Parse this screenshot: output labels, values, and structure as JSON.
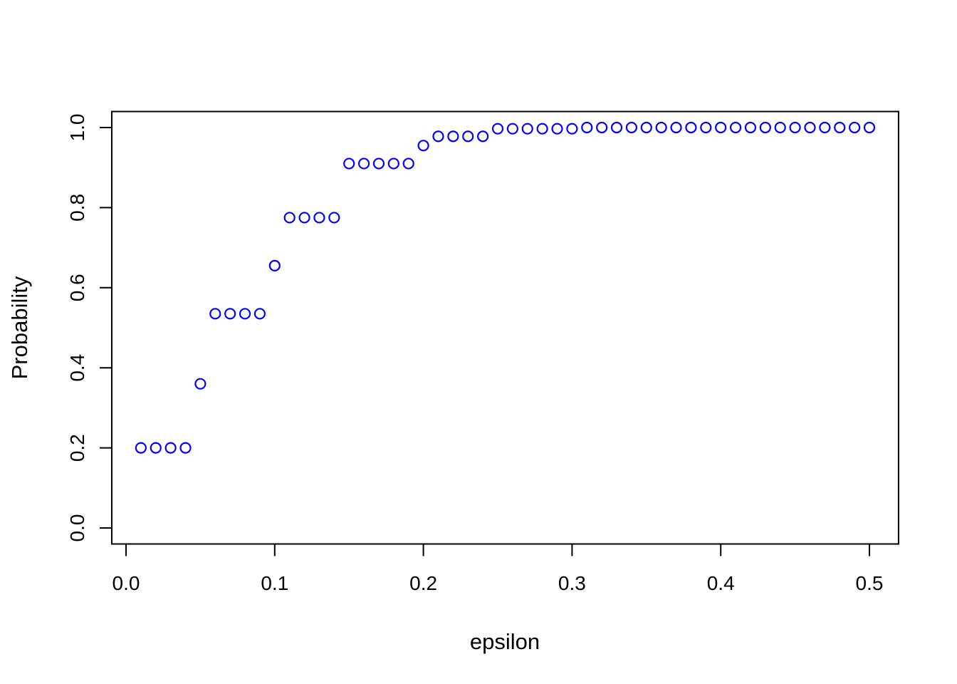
{
  "chart_data": {
    "type": "scatter",
    "title": "",
    "xlabel": "epsilon",
    "ylabel": "Probability",
    "x": [
      0.01,
      0.02,
      0.03,
      0.04,
      0.05,
      0.06,
      0.07,
      0.08,
      0.09,
      0.1,
      0.11,
      0.12,
      0.13,
      0.14,
      0.15,
      0.16,
      0.17,
      0.18,
      0.19,
      0.2,
      0.21,
      0.22,
      0.23,
      0.24,
      0.25,
      0.26,
      0.27,
      0.28,
      0.29,
      0.3,
      0.31,
      0.32,
      0.33,
      0.34,
      0.35,
      0.36,
      0.37,
      0.38,
      0.39,
      0.4,
      0.41,
      0.42,
      0.43,
      0.44,
      0.45,
      0.46,
      0.47,
      0.48,
      0.49,
      0.5
    ],
    "y": [
      0.2,
      0.2,
      0.2,
      0.2,
      0.36,
      0.535,
      0.535,
      0.535,
      0.535,
      0.655,
      0.775,
      0.775,
      0.775,
      0.775,
      0.91,
      0.91,
      0.91,
      0.91,
      0.91,
      0.955,
      0.978,
      0.978,
      0.978,
      0.978,
      0.997,
      0.997,
      0.997,
      0.997,
      0.997,
      0.997,
      1.0,
      1.0,
      1.0,
      1.0,
      1.0,
      1.0,
      1.0,
      1.0,
      1.0,
      1.0,
      1.0,
      1.0,
      1.0,
      1.0,
      1.0,
      1.0,
      1.0,
      1.0,
      1.0,
      1.0
    ],
    "x_ticks": [
      0.0,
      0.1,
      0.2,
      0.3,
      0.4,
      0.5
    ],
    "x_tick_labels": [
      "0.0",
      "0.1",
      "0.2",
      "0.3",
      "0.4",
      "0.5"
    ],
    "y_ticks": [
      0.0,
      0.2,
      0.4,
      0.6,
      0.8,
      1.0
    ],
    "y_tick_labels": [
      "0.0",
      "0.2",
      "0.4",
      "0.6",
      "0.8",
      "1.0"
    ],
    "xlim": [
      -0.0096,
      0.5196
    ],
    "ylim": [
      -0.04,
      1.04
    ],
    "grid": false,
    "legend": null,
    "marker": {
      "shape": "open-circle",
      "color": "#0000FF",
      "radius": 7,
      "stroke_width": 2.2
    },
    "axis_color": "#000000",
    "background_color": "#FFFFFF"
  }
}
